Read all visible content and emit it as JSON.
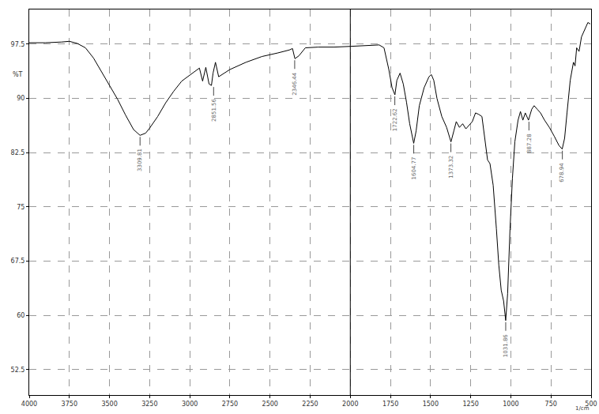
{
  "chart_data": {
    "type": "line",
    "x_label": "1/cm",
    "y_label": "%T",
    "color": "#000000",
    "grid": true,
    "xlim": [
      4000,
      500
    ],
    "xticks": [
      4000,
      3750,
      3500,
      3250,
      3000,
      2750,
      2500,
      2250,
      2000,
      1750,
      1500,
      1250,
      1000,
      750,
      500
    ],
    "ylim": [
      49,
      102.3
    ],
    "yticks": [
      52.5,
      60,
      67.5,
      75,
      82.5,
      90,
      97.5
    ],
    "vlines": [
      2000
    ],
    "x": [
      4000,
      3900,
      3800,
      3750,
      3700,
      3650,
      3600,
      3550,
      3500,
      3450,
      3400,
      3350,
      3310,
      3275,
      3250,
      3200,
      3150,
      3100,
      3050,
      3000,
      2960,
      2940,
      2920,
      2900,
      2880,
      2865,
      2855,
      2840,
      2820,
      2750,
      2650,
      2550,
      2450,
      2380,
      2360,
      2345,
      2320,
      2280,
      2200,
      2100,
      2000,
      1900,
      1820,
      1790,
      1760,
      1740,
      1722,
      1710,
      1690,
      1670,
      1650,
      1630,
      1605,
      1590,
      1570,
      1540,
      1510,
      1495,
      1480,
      1460,
      1430,
      1400,
      1373,
      1355,
      1340,
      1320,
      1300,
      1280,
      1260,
      1240,
      1220,
      1200,
      1180,
      1160,
      1145,
      1130,
      1110,
      1090,
      1075,
      1060,
      1045,
      1032,
      1020,
      1005,
      990,
      975,
      955,
      940,
      925,
      910,
      890,
      870,
      855,
      835,
      815,
      790,
      760,
      730,
      700,
      680,
      665,
      650,
      630,
      610,
      600,
      590,
      575,
      560,
      540,
      520,
      505
    ],
    "values": [
      97.7,
      97.7,
      97.8,
      97.9,
      97.6,
      97.0,
      95.6,
      93.7,
      91.8,
      89.9,
      87.7,
      85.7,
      84.9,
      85.2,
      85.9,
      87.5,
      89.4,
      91.0,
      92.4,
      93.2,
      93.8,
      94.2,
      92.4,
      94.3,
      92.0,
      91.8,
      93.5,
      95.0,
      93.0,
      94.0,
      95.0,
      95.8,
      96.3,
      96.7,
      96.9,
      95.5,
      95.9,
      97.0,
      97.1,
      97.1,
      97.2,
      97.3,
      97.4,
      97.0,
      94.0,
      91.5,
      90.5,
      92.5,
      93.5,
      92.0,
      89.5,
      86.5,
      83.8,
      85.5,
      89.0,
      91.5,
      93.0,
      93.3,
      92.5,
      90.0,
      87.5,
      86.0,
      84.0,
      85.5,
      86.8,
      86.0,
      86.5,
      85.8,
      86.3,
      86.8,
      88.0,
      87.8,
      87.5,
      84.0,
      81.5,
      81.0,
      78.0,
      72.0,
      67.0,
      63.5,
      62.0,
      59.3,
      63.0,
      72.0,
      79.0,
      84.0,
      87.0,
      88.2,
      87.0,
      88.0,
      87.0,
      88.5,
      89.0,
      88.5,
      88.0,
      87.0,
      86.0,
      84.8,
      83.5,
      83.0,
      84.5,
      88.0,
      92.5,
      95.0,
      94.5,
      97.0,
      96.5,
      98.5,
      99.5,
      100.5,
      100.3
    ],
    "annotations": [
      {
        "x": 3309.81,
        "y": 84.9,
        "label": "3309.81"
      },
      {
        "x": 2851.56,
        "y": 91.8,
        "label": "2851.56"
      },
      {
        "x": 2346.44,
        "y": 95.5,
        "label": "2346.44"
      },
      {
        "x": 1722.62,
        "y": 90.5,
        "label": "1722.62"
      },
      {
        "x": 1604.77,
        "y": 83.8,
        "label": "1604.77"
      },
      {
        "x": 1373.32,
        "y": 84.0,
        "label": "1373.32"
      },
      {
        "x": 1031.86,
        "y": 59.3,
        "label": "1031.86"
      },
      {
        "x": 887.28,
        "y": 87.0,
        "label": "887.28"
      },
      {
        "x": 678.94,
        "y": 83.0,
        "label": "678.94"
      }
    ]
  }
}
